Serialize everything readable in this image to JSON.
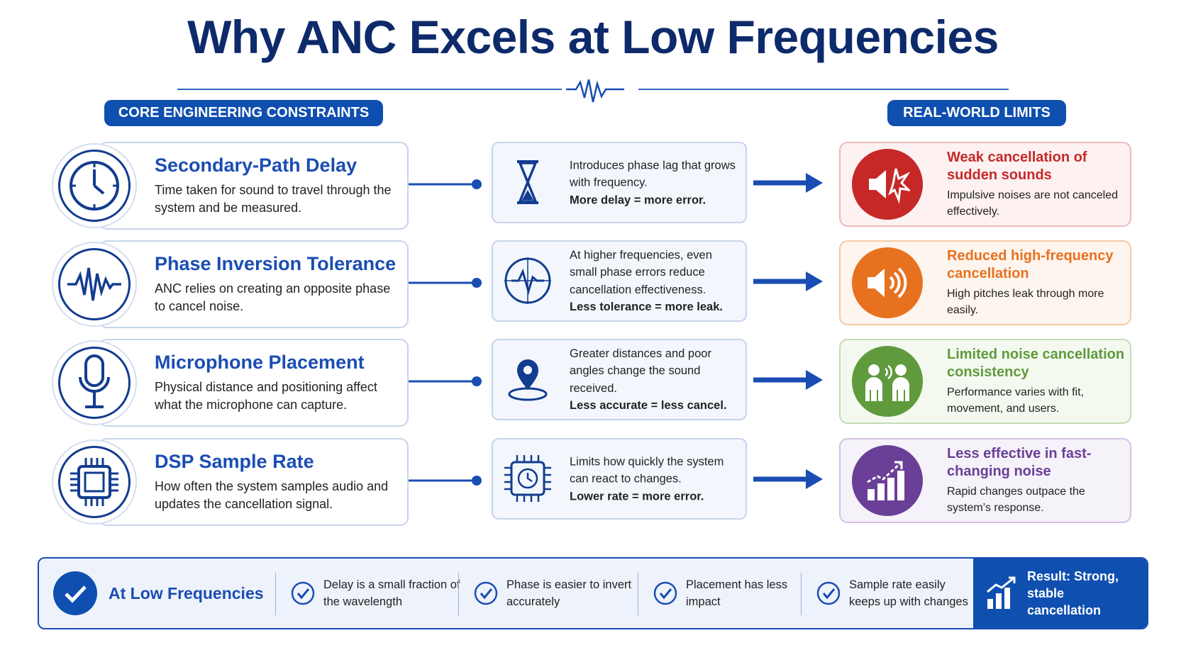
{
  "title": "Why ANC Excels at Low Frequencies",
  "left_header": "CORE ENGINEERING CONSTRAINTS",
  "right_header": "REAL-WORLD LIMITS",
  "rows": [
    {
      "title": "Secondary-Path Delay",
      "description": "Time taken for sound to travel through the system and be measured.",
      "effect": "Introduces phase lag that grows with frequency.",
      "effect_emphasis": "More delay = more error.",
      "limit_title": "Weak cancellation of sudden sounds",
      "limit_description": "Impulsive noises are not canceled effectively."
    },
    {
      "title": "Phase Inversion Tolerance",
      "description": "ANC relies on creating an opposite phase to cancel noise.",
      "effect": "At higher frequencies, even small phase errors reduce cancellation effectiveness.",
      "effect_emphasis": "Less tolerance = more leak.",
      "limit_title": "Reduced high-frequency cancellation",
      "limit_description": "High pitches leak through more easily."
    },
    {
      "title": "Microphone Placement",
      "description": "Physical distance and positioning affect what the microphone can capture.",
      "effect": "Greater distances and poor angles change the sound received.",
      "effect_emphasis": "Less accurate = less cancel.",
      "limit_title": "Limited noise cancellation consistency",
      "limit_description": "Performance varies with fit, movement, and users."
    },
    {
      "title": "DSP Sample Rate",
      "description": "How often the system samples audio and updates the cancellation signal.",
      "effect": "Limits how quickly the system can react to changes.",
      "effect_emphasis": "Lower rate = more error.",
      "limit_title": "Less effective in fast-changing noise",
      "limit_description": "Rapid changes outpace the system’s response."
    }
  ],
  "footer": {
    "label": "At Low Frequencies",
    "items": [
      "Delay is a small fraction of the wavelength",
      "Phase is easier to invert accurately",
      "Placement has less impact",
      "Sample rate easily keeps up with changes"
    ],
    "result": "Result: Strong, stable cancellation"
  }
}
